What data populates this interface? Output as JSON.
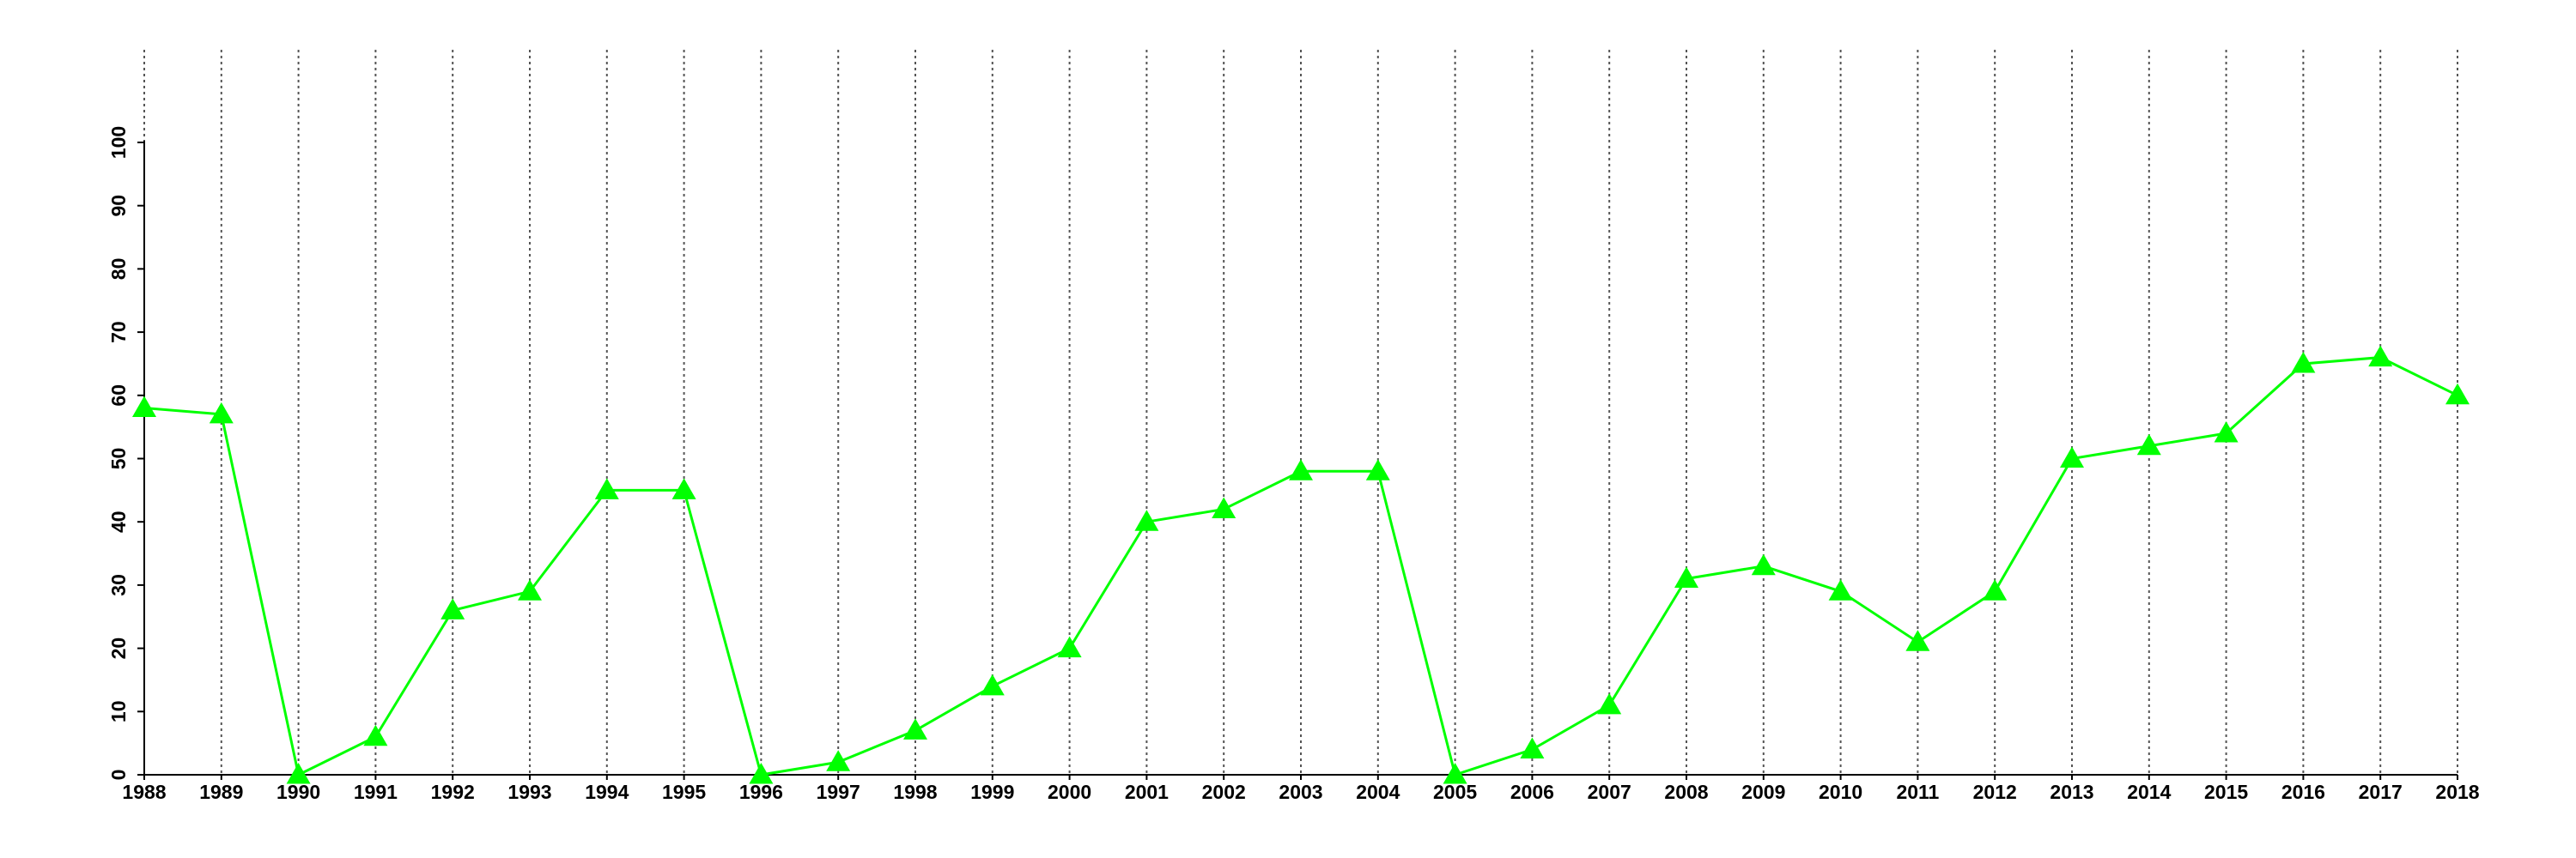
{
  "chart_data": {
    "type": "line",
    "color": "#00ff00",
    "marker": "triangle",
    "x": [
      1988,
      1989,
      1990,
      1991,
      1992,
      1993,
      1994,
      1995,
      1996,
      1997,
      1998,
      1999,
      2000,
      2001,
      2002,
      2003,
      2004,
      2005,
      2006,
      2007,
      2008,
      2009,
      2010,
      2011,
      2012,
      2013,
      2014,
      2015,
      2016,
      2017,
      2018
    ],
    "values": [
      58,
      57,
      0,
      6,
      26,
      29,
      45,
      45,
      0,
      2,
      7,
      14,
      20,
      40,
      42,
      48,
      48,
      0,
      4,
      11,
      31,
      33,
      29,
      21,
      29,
      50,
      52,
      54,
      65,
      66,
      60
    ],
    "xlim": [
      1988,
      2018
    ],
    "xticks": [
      1988,
      1989,
      1990,
      1991,
      1992,
      1993,
      1994,
      1995,
      1996,
      1997,
      1998,
      1999,
      2000,
      2001,
      2002,
      2003,
      2004,
      2005,
      2006,
      2007,
      2008,
      2009,
      2010,
      2011,
      2012,
      2013,
      2014,
      2015,
      2016,
      2017,
      2018
    ],
    "ylim": [
      0,
      100
    ],
    "yticks": [
      0,
      10,
      20,
      30,
      40,
      50,
      60,
      70,
      80,
      90,
      100
    ],
    "xgrid": true
  }
}
